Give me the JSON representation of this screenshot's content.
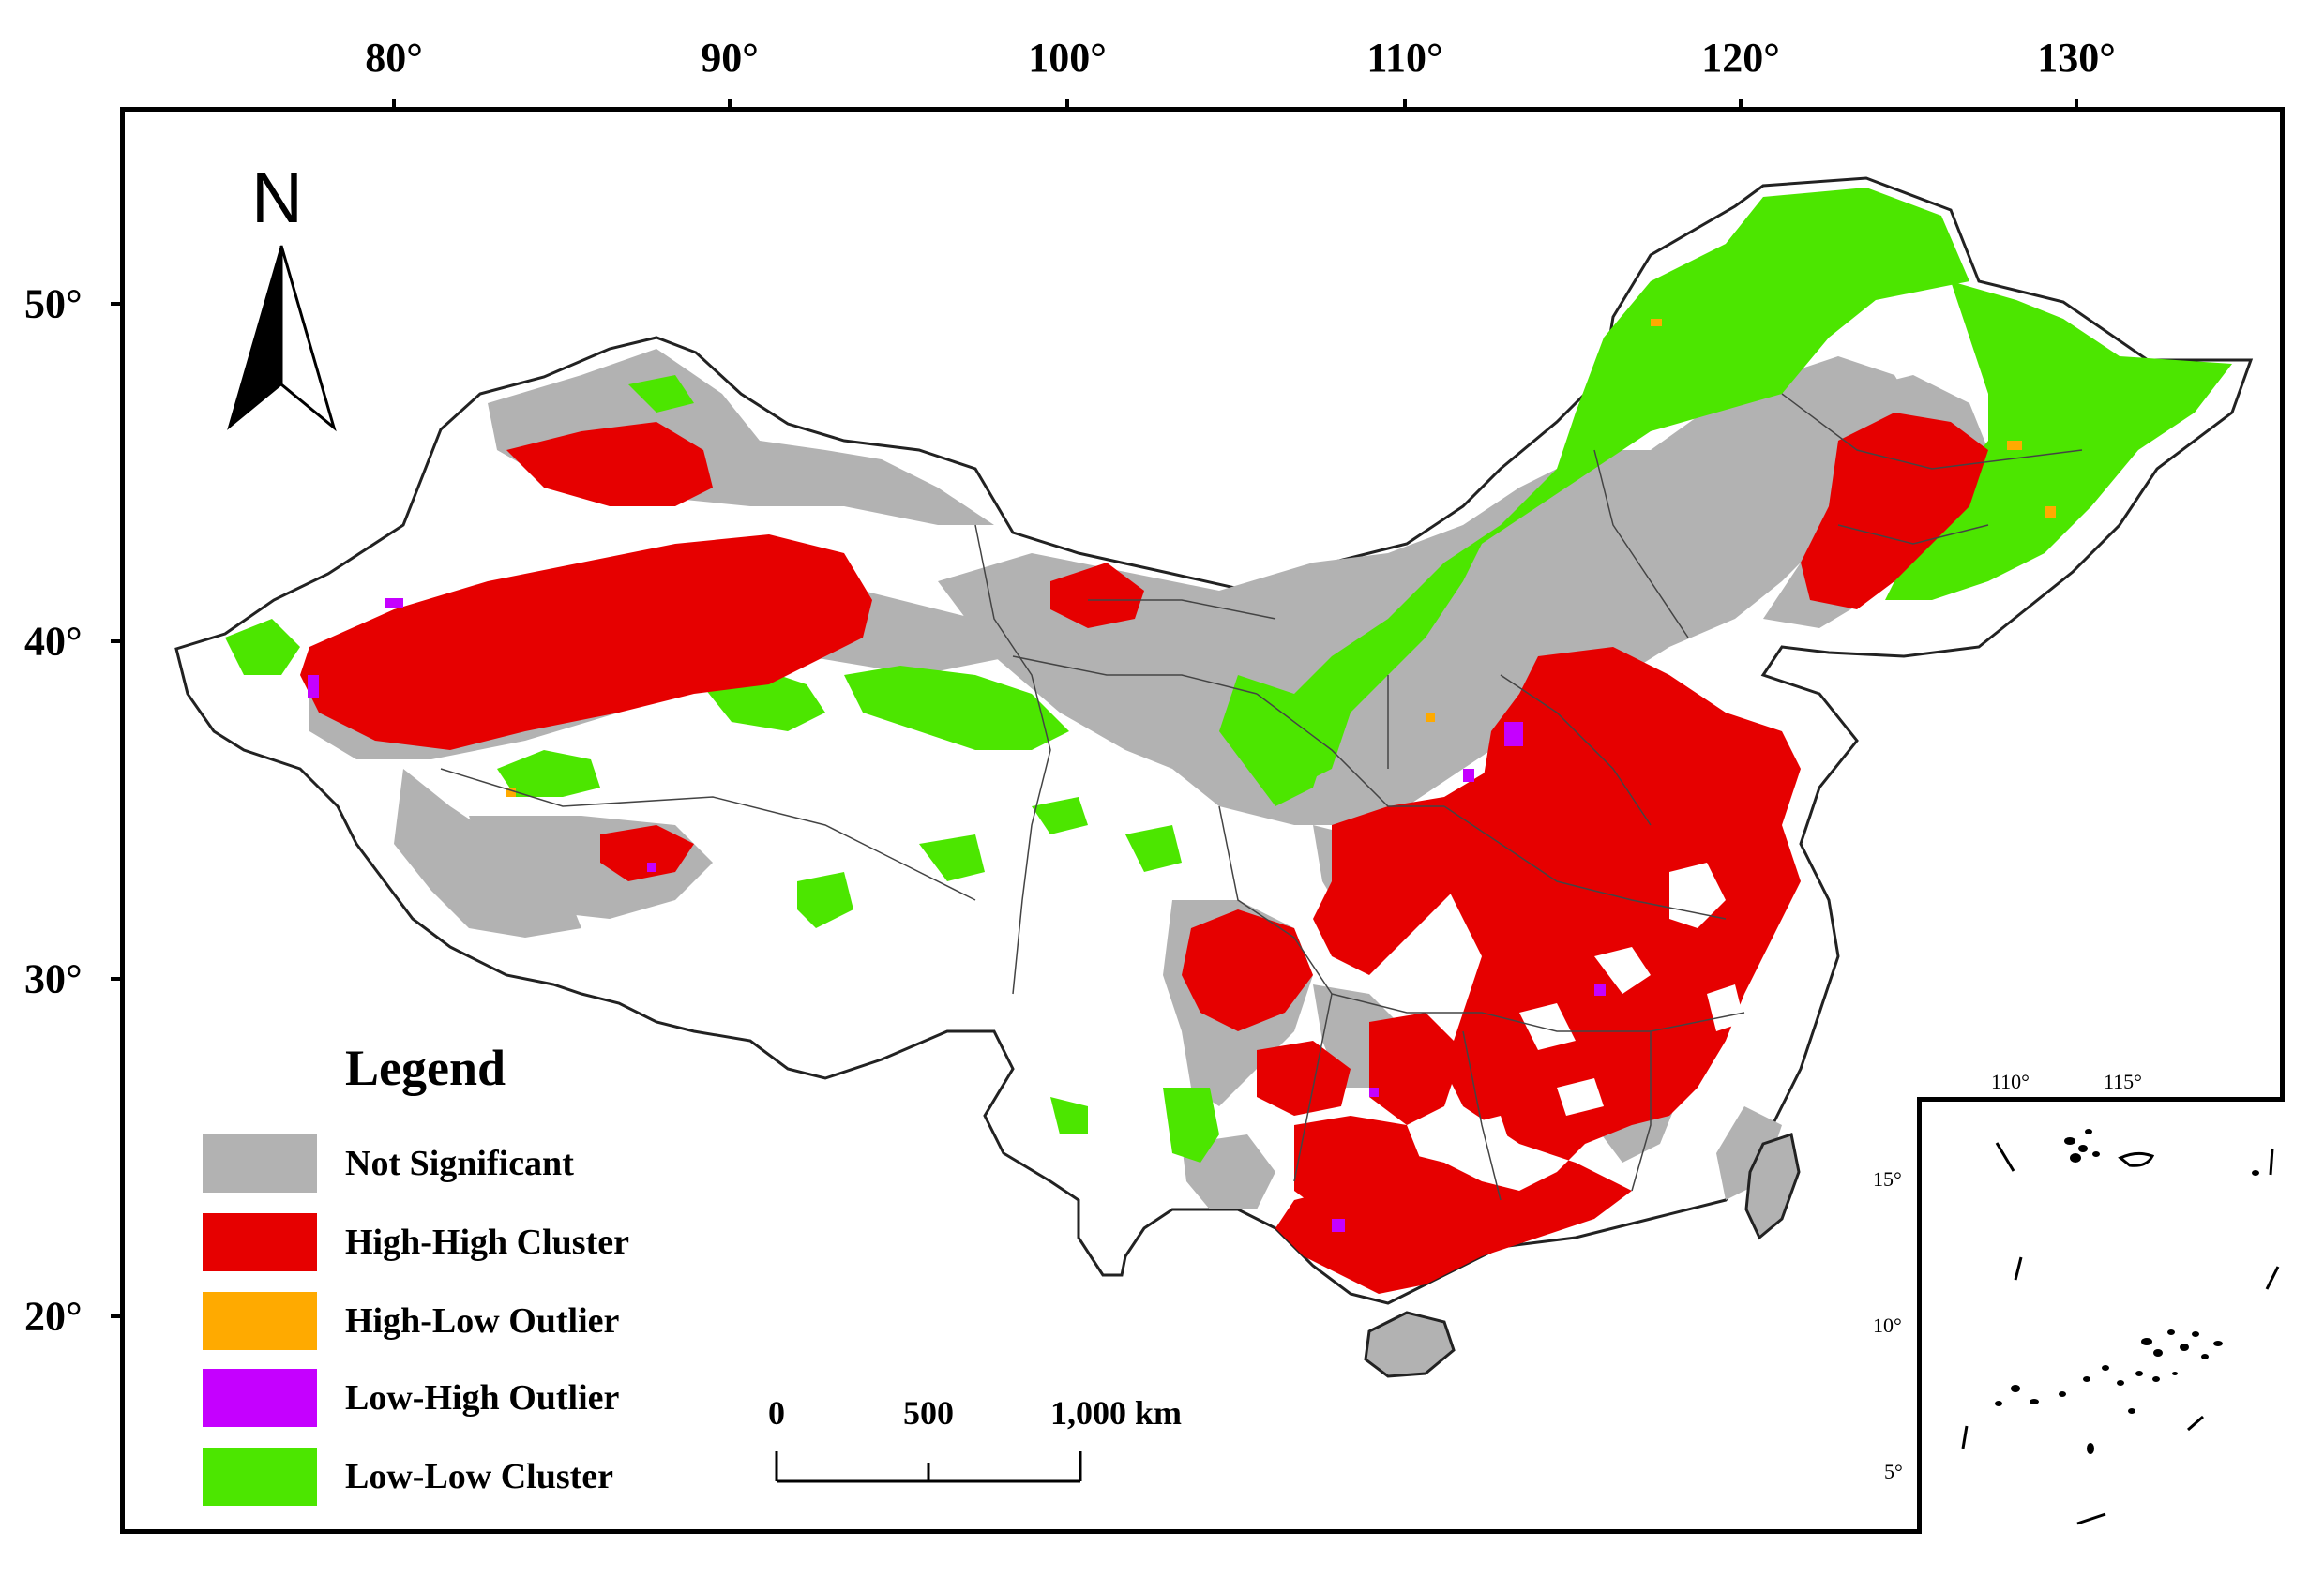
{
  "map": {
    "lon_labels": [
      "80°",
      "90°",
      "100°",
      "110°",
      "120°",
      "130°"
    ],
    "lat_labels": [
      "50°",
      "40°",
      "30°",
      "20°"
    ],
    "north_label": "N",
    "legend": {
      "title": "Legend",
      "items": [
        {
          "label": "Not Significant",
          "color": "#b2b2b2"
        },
        {
          "label": "High-High Cluster",
          "color": "#e60000"
        },
        {
          "label": "High-Low Outlier",
          "color": "#ffaa00"
        },
        {
          "label": "Low-High Outlier",
          "color": "#c500ff"
        },
        {
          "label": "Low-Low Cluster",
          "color": "#4ce600"
        }
      ]
    },
    "scale_bar": {
      "labels": [
        "0",
        "500",
        "1,000 km"
      ]
    },
    "inset": {
      "lon_labels": [
        "110°",
        "115°"
      ],
      "lat_labels": [
        "15°",
        "10°",
        "5°"
      ]
    }
  }
}
